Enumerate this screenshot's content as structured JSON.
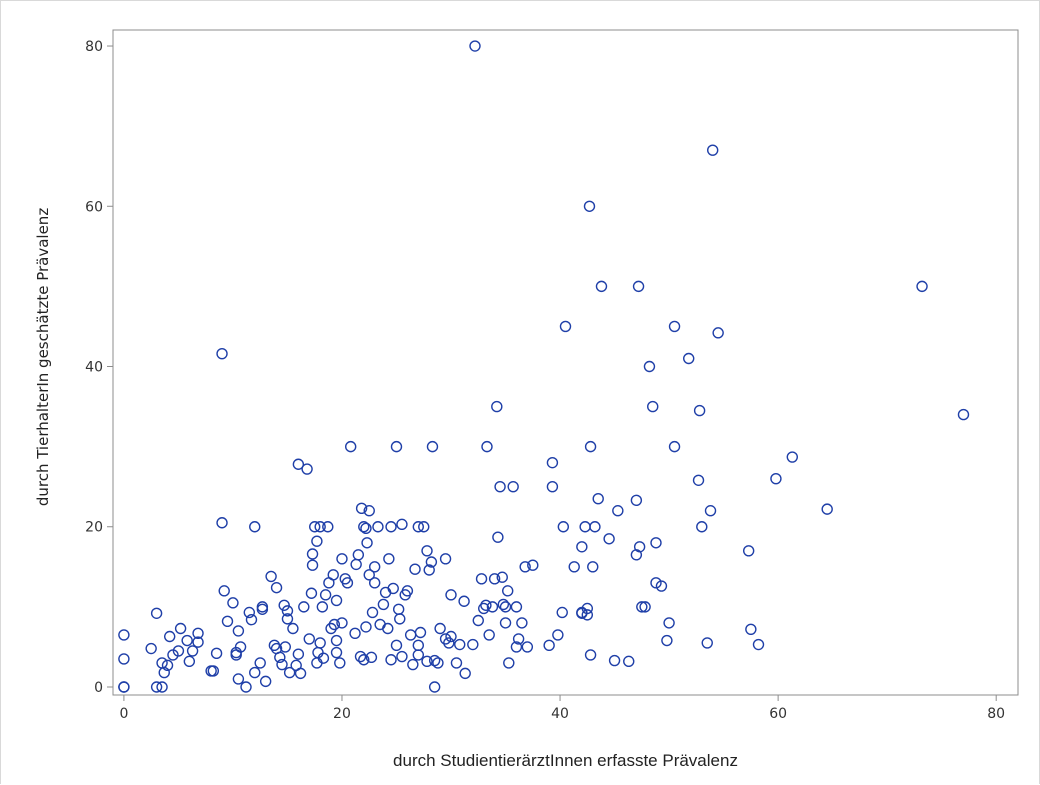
{
  "chart_data": {
    "type": "scatter",
    "title": "",
    "xlabel": "durch StudientierärztInnen erfasste Prävalenz",
    "ylabel": "durch TierhalterIn geschätzte Prävalenz",
    "xlim": [
      -1,
      82
    ],
    "ylim": [
      -1,
      82
    ],
    "x_ticks": [
      0,
      20,
      40,
      60,
      80
    ],
    "y_ticks": [
      0,
      20,
      40,
      60,
      80
    ],
    "x_tick_labels": [
      "0",
      "20",
      "40",
      "60",
      "80"
    ],
    "y_tick_labels": [
      "0",
      "20",
      "40",
      "60",
      "80"
    ],
    "grid": false,
    "legend": "none",
    "marker": "open-circle",
    "marker_color": "#1f3fa8",
    "series": [
      {
        "points": [
          [
            0,
            6.5
          ],
          [
            0,
            3.5
          ],
          [
            0,
            0
          ],
          [
            0,
            0
          ],
          [
            2.5,
            4.8
          ],
          [
            3,
            9.2
          ],
          [
            3,
            0
          ],
          [
            3.5,
            0
          ],
          [
            3.5,
            3
          ],
          [
            3.7,
            1.8
          ],
          [
            4,
            2.7
          ],
          [
            4.2,
            6.3
          ],
          [
            4.5,
            4
          ],
          [
            5,
            4.5
          ],
          [
            5.2,
            7.3
          ],
          [
            5.8,
            5.8
          ],
          [
            6,
            3.2
          ],
          [
            6.3,
            4.5
          ],
          [
            6.8,
            6.7
          ],
          [
            6.8,
            5.6
          ],
          [
            8,
            2
          ],
          [
            8.2,
            2
          ],
          [
            8.5,
            4.2
          ],
          [
            9,
            20.5
          ],
          [
            9,
            41.6
          ],
          [
            9.2,
            12
          ],
          [
            9.5,
            8.2
          ],
          [
            10,
            10.5
          ],
          [
            10.3,
            4
          ],
          [
            10.3,
            4.3
          ],
          [
            10.5,
            1
          ],
          [
            10.5,
            7
          ],
          [
            10.7,
            5
          ],
          [
            11.2,
            0
          ],
          [
            11.5,
            9.3
          ],
          [
            11.7,
            8.4
          ],
          [
            12,
            20
          ],
          [
            12,
            1.8
          ],
          [
            12.5,
            3
          ],
          [
            12.7,
            10
          ],
          [
            12.7,
            9.7
          ],
          [
            13,
            0.7
          ],
          [
            13.5,
            13.8
          ],
          [
            13.8,
            5.2
          ],
          [
            14,
            12.4
          ],
          [
            14,
            4.8
          ],
          [
            14.3,
            3.7
          ],
          [
            14.5,
            2.8
          ],
          [
            14.7,
            10.2
          ],
          [
            14.8,
            5
          ],
          [
            15,
            8.5
          ],
          [
            15,
            9.5
          ],
          [
            15.2,
            1.8
          ],
          [
            15.5,
            7.3
          ],
          [
            15.8,
            2.7
          ],
          [
            16,
            4.1
          ],
          [
            16,
            27.8
          ],
          [
            16.2,
            1.7
          ],
          [
            16.5,
            10
          ],
          [
            16.8,
            27.2
          ],
          [
            17,
            6
          ],
          [
            17.2,
            11.7
          ],
          [
            17.3,
            15.2
          ],
          [
            17.3,
            16.6
          ],
          [
            17.5,
            20
          ],
          [
            17.7,
            18.2
          ],
          [
            17.7,
            3
          ],
          [
            17.8,
            4.3
          ],
          [
            18,
            20
          ],
          [
            18,
            5.5
          ],
          [
            18.2,
            10
          ],
          [
            18.3,
            3.6
          ],
          [
            18.5,
            11.5
          ],
          [
            18.7,
            20
          ],
          [
            18.8,
            13
          ],
          [
            19,
            7.3
          ],
          [
            19.2,
            14
          ],
          [
            19.3,
            7.8
          ],
          [
            19.5,
            5.8
          ],
          [
            19.5,
            4.3
          ],
          [
            19.5,
            10.8
          ],
          [
            19.8,
            3
          ],
          [
            20,
            8
          ],
          [
            20,
            16
          ],
          [
            20.3,
            13.5
          ],
          [
            20.5,
            13
          ],
          [
            20.8,
            30
          ],
          [
            21.2,
            6.7
          ],
          [
            21.3,
            15.3
          ],
          [
            21.5,
            16.5
          ],
          [
            21.7,
            3.8
          ],
          [
            21.8,
            22.3
          ],
          [
            22,
            20
          ],
          [
            22,
            3.4
          ],
          [
            22.2,
            19.8
          ],
          [
            22.2,
            7.5
          ],
          [
            22.3,
            18
          ],
          [
            22.5,
            22
          ],
          [
            22.5,
            14
          ],
          [
            22.7,
            3.7
          ],
          [
            22.8,
            9.3
          ],
          [
            23,
            15
          ],
          [
            23,
            13
          ],
          [
            23.3,
            20
          ],
          [
            23.5,
            7.8
          ],
          [
            23.8,
            10.3
          ],
          [
            24,
            11.8
          ],
          [
            24.2,
            7.3
          ],
          [
            24.3,
            16
          ],
          [
            24.5,
            20
          ],
          [
            24.5,
            3.4
          ],
          [
            24.7,
            12.3
          ],
          [
            25,
            5.2
          ],
          [
            25,
            30
          ],
          [
            25.2,
            9.7
          ],
          [
            25.3,
            8.5
          ],
          [
            25.5,
            20.3
          ],
          [
            25.5,
            3.8
          ],
          [
            25.8,
            11.5
          ],
          [
            26,
            12
          ],
          [
            26.3,
            6.5
          ],
          [
            26.5,
            2.8
          ],
          [
            26.7,
            14.7
          ],
          [
            27,
            20
          ],
          [
            27,
            5.2
          ],
          [
            27,
            4
          ],
          [
            27.2,
            6.8
          ],
          [
            27.5,
            20
          ],
          [
            27.8,
            3.2
          ],
          [
            27.8,
            17
          ],
          [
            28,
            14.6
          ],
          [
            28.2,
            15.6
          ],
          [
            28.3,
            30
          ],
          [
            28.5,
            3.3
          ],
          [
            28.5,
            0
          ],
          [
            28.8,
            3
          ],
          [
            29,
            7.3
          ],
          [
            29.5,
            16
          ],
          [
            29.5,
            6
          ],
          [
            29.8,
            5.5
          ],
          [
            30,
            11.5
          ],
          [
            30,
            6.3
          ],
          [
            30.5,
            3
          ],
          [
            30.8,
            5.3
          ],
          [
            31.2,
            10.7
          ],
          [
            31.3,
            1.7
          ],
          [
            32,
            5.3
          ],
          [
            32.2,
            80
          ],
          [
            32.5,
            8.3
          ],
          [
            32.8,
            13.5
          ],
          [
            33,
            9.8
          ],
          [
            33.2,
            10.2
          ],
          [
            33.3,
            30
          ],
          [
            33.5,
            6.5
          ],
          [
            33.8,
            10
          ],
          [
            34,
            13.5
          ],
          [
            34.2,
            35
          ],
          [
            34.3,
            18.7
          ],
          [
            34.5,
            25
          ],
          [
            34.7,
            13.7
          ],
          [
            34.8,
            10.3
          ],
          [
            35,
            10
          ],
          [
            35,
            8
          ],
          [
            35.2,
            12
          ],
          [
            35.3,
            3
          ],
          [
            35.7,
            25
          ],
          [
            36,
            10
          ],
          [
            36,
            5
          ],
          [
            36.2,
            6
          ],
          [
            36.5,
            8
          ],
          [
            36.8,
            15
          ],
          [
            37,
            5
          ],
          [
            37.5,
            15.2
          ],
          [
            39,
            5.2
          ],
          [
            39.3,
            28
          ],
          [
            39.3,
            25
          ],
          [
            39.8,
            6.5
          ],
          [
            40.2,
            9.3
          ],
          [
            40.3,
            20
          ],
          [
            40.5,
            45
          ],
          [
            41.3,
            15
          ],
          [
            42,
            9.3
          ],
          [
            42,
            17.5
          ],
          [
            42,
            9.2
          ],
          [
            42.3,
            20
          ],
          [
            42.5,
            9.8
          ],
          [
            42.5,
            9
          ],
          [
            42.7,
            60
          ],
          [
            42.8,
            30
          ],
          [
            42.8,
            4
          ],
          [
            43,
            15
          ],
          [
            43.2,
            20
          ],
          [
            43.5,
            23.5
          ],
          [
            43.8,
            50
          ],
          [
            44.5,
            18.5
          ],
          [
            45,
            3.3
          ],
          [
            45.3,
            22
          ],
          [
            46.3,
            3.2
          ],
          [
            47,
            16.5
          ],
          [
            47,
            23.3
          ],
          [
            47.2,
            50
          ],
          [
            47.3,
            17.5
          ],
          [
            47.5,
            10
          ],
          [
            47.8,
            10
          ],
          [
            48.2,
            40
          ],
          [
            48.5,
            35
          ],
          [
            48.8,
            18
          ],
          [
            48.8,
            13
          ],
          [
            49.3,
            12.6
          ],
          [
            49.8,
            5.8
          ],
          [
            50,
            8
          ],
          [
            50.5,
            45
          ],
          [
            50.5,
            30
          ],
          [
            51.8,
            41
          ],
          [
            52.7,
            25.8
          ],
          [
            52.8,
            34.5
          ],
          [
            53,
            20
          ],
          [
            53.5,
            5.5
          ],
          [
            53.8,
            22
          ],
          [
            54,
            67
          ],
          [
            54.5,
            44.2
          ],
          [
            57.3,
            17
          ],
          [
            57.5,
            7.2
          ],
          [
            58.2,
            5.3
          ],
          [
            59.8,
            26
          ],
          [
            61.3,
            28.7
          ],
          [
            64.5,
            22.2
          ],
          [
            73.2,
            50
          ],
          [
            77,
            34
          ]
        ]
      }
    ]
  }
}
